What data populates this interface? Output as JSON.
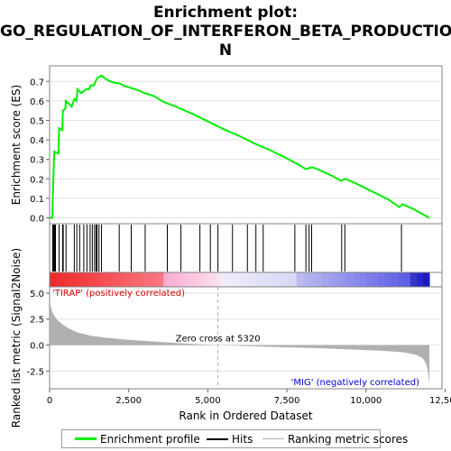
{
  "title_line1": "Enrichment plot:",
  "title_line2": "GO_REGULATION_OF_INTERFERON_BETA_PRODUCTIO",
  "title_line3": "N",
  "colors": {
    "es_line": "#00ee00",
    "hits": "#000000",
    "metric_fill": "#b0b0b0",
    "zero_cross_line": "#b0b0b0",
    "positive_label": "#cc0000",
    "negative_label": "#0000cc"
  },
  "legend": {
    "es_label": "Enrichment profile",
    "hits_label": "Hits",
    "metric_label": "Ranking metric scores"
  },
  "chart_data": [
    {
      "type": "line",
      "name": "enrichment-profile",
      "ylabel": "Enrichment score (ES)",
      "ylim": [
        -0.03,
        0.78
      ],
      "yticks": [
        0.0,
        0.1,
        0.2,
        0.3,
        0.4,
        0.5,
        0.6,
        0.7
      ],
      "ytick_labels": [
        "0.0",
        "0.1",
        "0.2",
        "0.3",
        "0.4",
        "0.5",
        "0.6",
        "0.7"
      ],
      "xlim": [
        0,
        12400
      ],
      "grid": true,
      "points": [
        [
          0,
          0.0
        ],
        [
          90,
          0.0
        ],
        [
          100,
          0.09
        ],
        [
          115,
          0.18
        ],
        [
          130,
          0.26
        ],
        [
          150,
          0.34
        ],
        [
          280,
          0.33
        ],
        [
          300,
          0.46
        ],
        [
          400,
          0.45
        ],
        [
          420,
          0.55
        ],
        [
          500,
          0.56
        ],
        [
          510,
          0.6
        ],
        [
          650,
          0.58
        ],
        [
          700,
          0.57
        ],
        [
          780,
          0.61
        ],
        [
          850,
          0.6
        ],
        [
          880,
          0.66
        ],
        [
          1000,
          0.64
        ],
        [
          1150,
          0.66
        ],
        [
          1250,
          0.66
        ],
        [
          1300,
          0.68
        ],
        [
          1400,
          0.68
        ],
        [
          1450,
          0.7
        ],
        [
          1520,
          0.72
        ],
        [
          1650,
          0.73
        ],
        [
          1800,
          0.71
        ],
        [
          2000,
          0.695
        ],
        [
          2200,
          0.69
        ],
        [
          2400,
          0.675
        ],
        [
          2600,
          0.665
        ],
        [
          2800,
          0.655
        ],
        [
          3000,
          0.64
        ],
        [
          3300,
          0.625
        ],
        [
          3600,
          0.595
        ],
        [
          4000,
          0.57
        ],
        [
          4500,
          0.535
        ],
        [
          5000,
          0.495
        ],
        [
          5500,
          0.455
        ],
        [
          6000,
          0.42
        ],
        [
          6500,
          0.38
        ],
        [
          7000,
          0.345
        ],
        [
          7500,
          0.305
        ],
        [
          7900,
          0.27
        ],
        [
          8100,
          0.25
        ],
        [
          8300,
          0.26
        ],
        [
          8600,
          0.24
        ],
        [
          9000,
          0.21
        ],
        [
          9200,
          0.19
        ],
        [
          9350,
          0.2
        ],
        [
          9700,
          0.175
        ],
        [
          10200,
          0.135
        ],
        [
          10700,
          0.095
        ],
        [
          11050,
          0.055
        ],
        [
          11150,
          0.07
        ],
        [
          11500,
          0.045
        ],
        [
          12000,
          0.0
        ]
      ]
    },
    {
      "type": "scatter",
      "name": "hits",
      "hit_ranks": [
        95,
        120,
        145,
        165,
        185,
        300,
        410,
        430,
        520,
        780,
        860,
        950,
        1080,
        1180,
        1280,
        1350,
        1420,
        1470,
        1500,
        1560,
        1640,
        2200,
        2580,
        3020,
        3720,
        4150,
        4750,
        5080,
        5320,
        5780,
        6250,
        6520,
        6750,
        7750,
        8100,
        8200,
        8280,
        9230,
        9330,
        11120
      ]
    },
    {
      "type": "area",
      "name": "ranking-metric",
      "ylabel": "Ranked list metric (Signal2Noise)",
      "xlabel": "Rank in Ordered Dataset",
      "ylim": [
        -4.2,
        5.6
      ],
      "yticks": [
        -2.5,
        0.0,
        2.5,
        5.0
      ],
      "ytick_labels": [
        "-2.5",
        "0.0",
        "2.5",
        "5.0"
      ],
      "xlim": [
        0,
        12400
      ],
      "xticks": [
        0,
        2500,
        5000,
        7500,
        10000,
        12500
      ],
      "xtick_labels": [
        "0",
        "2,500",
        "5,000",
        "7,500",
        "10,000",
        "12,500"
      ],
      "points": [
        [
          0,
          4.5
        ],
        [
          30,
          3.8
        ],
        [
          80,
          3.2
        ],
        [
          150,
          2.8
        ],
        [
          250,
          2.4
        ],
        [
          400,
          2.0
        ],
        [
          600,
          1.6
        ],
        [
          900,
          1.2
        ],
        [
          1300,
          0.9
        ],
        [
          1800,
          0.7
        ],
        [
          2500,
          0.5
        ],
        [
          3500,
          0.3
        ],
        [
          4500,
          0.12
        ],
        [
          5320,
          0.0
        ],
        [
          6500,
          -0.12
        ],
        [
          7500,
          -0.22
        ],
        [
          8500,
          -0.3
        ],
        [
          9500,
          -0.42
        ],
        [
          10500,
          -0.55
        ],
        [
          11200,
          -0.7
        ],
        [
          11600,
          -0.95
        ],
        [
          11800,
          -1.3
        ],
        [
          11900,
          -1.8
        ],
        [
          11950,
          -2.4
        ],
        [
          12000,
          -3.8
        ]
      ],
      "zero_cross": 5320,
      "zero_cross_label": "Zero cross at 5320",
      "positive_label": "'TIRAP' (positively correlated)",
      "negative_label": "'MIG' (negatively correlated)"
    }
  ]
}
